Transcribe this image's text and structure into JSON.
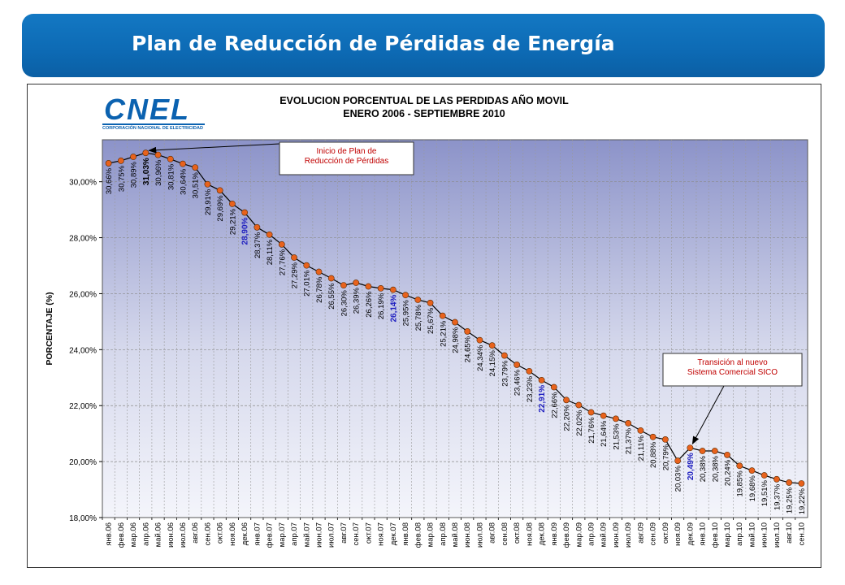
{
  "header": {
    "title": "Plan de Reducción de Pérdidas de Energía"
  },
  "logo": {
    "text": "CNEL",
    "subtitle": "CORPORACIÓN NACIONAL DE ELECTRICIDAD"
  },
  "colors": {
    "banner": "#0d6ab4",
    "line": "#000000",
    "marker": "#e8621c",
    "highlight": "#1f1fbf",
    "annotation": "#c00000"
  },
  "chart_data": {
    "type": "line",
    "title": "EVOLUCION PORCENTUAL DE LAS PERDIDAS AÑO MOVIL",
    "subtitle": "ENERO 2006 - SEPTIEMBRE 2010",
    "ylabel": "PORCENTAJE (%)",
    "xlabel": "",
    "ylim": [
      18,
      31.5
    ],
    "yticks": [
      "18,00%",
      "20,00%",
      "22,00%",
      "24,00%",
      "26,00%",
      "28,00%",
      "30,00%"
    ],
    "grid": true,
    "categories": [
      "янв.06",
      "фев.06",
      "мар.06",
      "апр.06",
      "май.06",
      "июн.06",
      "июл.06",
      "авг.06",
      "сен.06",
      "окт.06",
      "ноя.06",
      "дек.06",
      "янв.07",
      "фев.07",
      "мар.07",
      "апр.07",
      "май.07",
      "июн.07",
      "июл.07",
      "авг.07",
      "сен.07",
      "окт.07",
      "ноя.07",
      "дек.07",
      "янв.08",
      "фев.08",
      "мар.08",
      "апр.08",
      "май.08",
      "июн.08",
      "июл.08",
      "авг.08",
      "сен.08",
      "окт.08",
      "ноя.08",
      "дек.08",
      "янв.09",
      "фев.09",
      "мар.09",
      "апр.09",
      "май.09",
      "июн.09",
      "июл.09",
      "авг.09",
      "сен.09",
      "окт.09",
      "ноя.09",
      "дек.09",
      "янв.10",
      "фев.10",
      "мар.10",
      "апр.10",
      "май.10",
      "июн.10",
      "июл.10",
      "авг.10",
      "сен.10"
    ],
    "values": [
      30.66,
      30.75,
      30.89,
      31.03,
      30.96,
      30.81,
      30.64,
      30.51,
      29.91,
      29.69,
      29.21,
      28.9,
      28.37,
      28.11,
      27.76,
      27.29,
      27.01,
      26.78,
      26.55,
      26.3,
      26.39,
      26.26,
      26.19,
      26.14,
      25.95,
      25.78,
      25.67,
      25.21,
      24.98,
      24.65,
      24.34,
      24.15,
      23.79,
      23.46,
      23.23,
      22.91,
      22.66,
      22.2,
      22.02,
      21.76,
      21.64,
      21.53,
      21.37,
      21.11,
      20.88,
      20.79,
      20.03,
      20.49,
      20.38,
      20.38,
      20.24,
      19.85,
      19.68,
      19.51,
      19.37,
      19.25,
      19.22
    ],
    "value_labels": [
      "30,66%",
      "30,75%",
      "30,89%",
      "31,03%",
      "30,96%",
      "30,81%",
      "30,64%",
      "30,51%",
      "29,91%",
      "29,69%",
      "29,21%",
      "28,90%",
      "28,37%",
      "28,11%",
      "27,76%",
      "27,29%",
      "27,01%",
      "26,78%",
      "26,55%",
      "26,30%",
      "26,39%",
      "26,26%",
      "26,19%",
      "26,14%",
      "25,95%",
      "25,78%",
      "25,67%",
      "25,21%",
      "24,98%",
      "24,65%",
      "24,34%",
      "24,15%",
      "23,79%",
      "23,46%",
      "23,23%",
      "22,91%",
      "22,66%",
      "22,20%",
      "22,02%",
      "21,76%",
      "21,64%",
      "21,53%",
      "21,37%",
      "21,11%",
      "20,88%",
      "20,79%",
      "20,03%",
      "20,49%",
      "20,38%",
      "20,38%",
      "20,24%",
      "19,85%",
      "19,68%",
      "19,51%",
      "19,37%",
      "19,25%",
      "19,22%"
    ],
    "bold_black_indices": [
      3
    ],
    "bold_blue_indices": [
      11,
      23,
      35,
      47
    ],
    "annotations": [
      {
        "text": [
          "Inicio de Plan de",
          "Reducción de Pérdidas"
        ],
        "points_to_index": 3
      },
      {
        "text": [
          "Transición al nuevo",
          "Sistema Comercial SICO"
        ],
        "points_to_index": 47
      }
    ]
  }
}
